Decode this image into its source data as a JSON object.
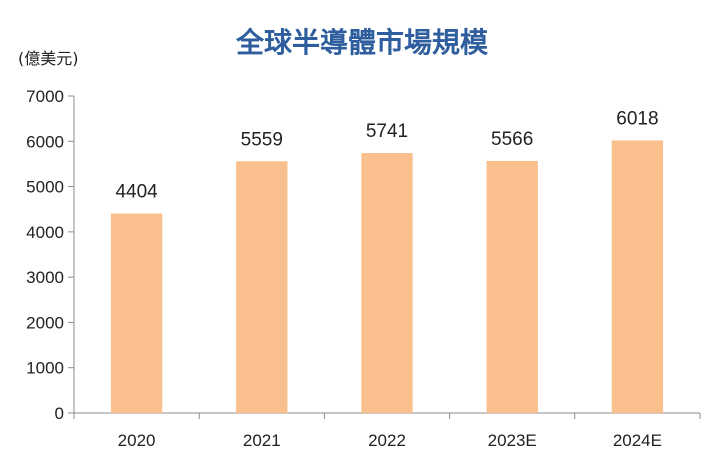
{
  "chart_data": {
    "type": "bar",
    "title": "全球半導體市場規模",
    "unit_label": "(億美元)",
    "categories": [
      "2020",
      "2021",
      "2022",
      "2023E",
      "2024E"
    ],
    "values": [
      4404,
      5559,
      5741,
      5566,
      6018
    ],
    "data_labels": [
      "4404",
      "5559",
      "5741",
      "5566",
      "6018"
    ],
    "ylim": [
      0,
      7000
    ],
    "yticks": [
      0,
      1000,
      2000,
      3000,
      4000,
      5000,
      6000,
      7000
    ],
    "ytick_labels": [
      "0",
      "1000",
      "2000",
      "3000",
      "4000",
      "5000",
      "6000",
      "7000"
    ],
    "grid": false,
    "legend": "none",
    "colors": {
      "bar": "#f9c08e",
      "title": "#2e5e9e",
      "axis": "#8c8c8c",
      "text": "#222222"
    }
  }
}
